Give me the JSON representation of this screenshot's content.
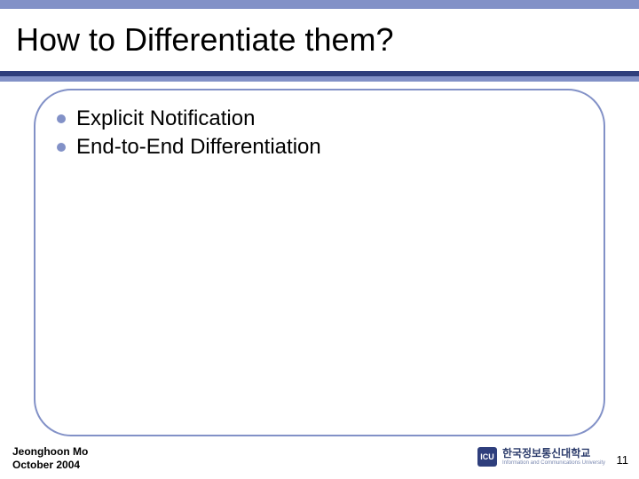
{
  "colors": {
    "accent": "#8291c7",
    "accent_dark": "#2e3e7c",
    "frame_border": "#8291c7",
    "bullet": "#8291c7",
    "logo_badge_bg": "#2e3e7c",
    "logo_text": "#2a3a6a",
    "logo_sub": "#7a88b0"
  },
  "layout": {
    "top_strip_color": "#8291c7",
    "divider1_color": "#2e3e7c",
    "divider2_color": "#8291c7"
  },
  "title": "How to Differentiate them?",
  "title_fontsize": 36,
  "bullets": [
    "Explicit Notification",
    "End-to-End Differentiation"
  ],
  "bullet_fontsize": 24,
  "footer": {
    "author_line1": "Jeonghoon Mo",
    "author_line2": "October 2004",
    "page_number": "11"
  },
  "logo": {
    "badge_text": "ICU",
    "korean": "한국정보통신대학교",
    "english": "Information and Communications University"
  }
}
